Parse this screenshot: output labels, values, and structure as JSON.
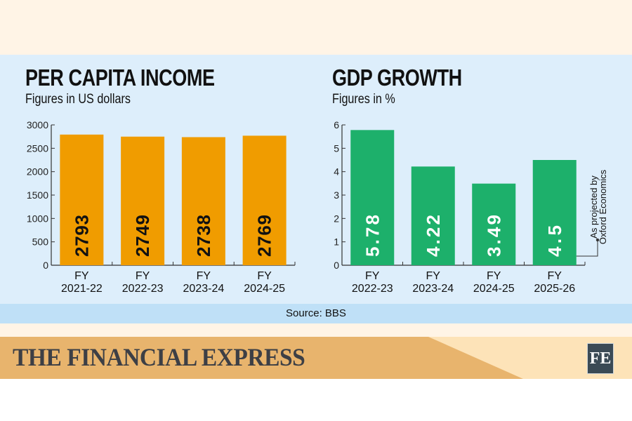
{
  "chart_data": [
    {
      "type": "bar",
      "title": "PER CAPITA INCOME",
      "subtitle": "Figures in US dollars",
      "categories": [
        [
          "FY",
          "2021-22"
        ],
        [
          "FY",
          "2022-23"
        ],
        [
          "FY",
          "2023-24"
        ],
        [
          "FY",
          "2024-25"
        ]
      ],
      "values": [
        2793,
        2749,
        2738,
        2769
      ],
      "ylim": [
        0,
        3000
      ],
      "yticks": [
        0,
        500,
        1000,
        1500,
        2000,
        2500,
        3000
      ],
      "color": "#f09c00",
      "label_color": "#111111",
      "grid": false
    },
    {
      "type": "bar",
      "title": "GDP GROWTH",
      "subtitle": "Figures in %",
      "categories": [
        [
          "FY",
          "2022-23"
        ],
        [
          "FY",
          "2023-24"
        ],
        [
          "FY",
          "2024-25"
        ],
        [
          "FY",
          "2025-26"
        ]
      ],
      "values": [
        5.78,
        4.22,
        3.49,
        4.5
      ],
      "ylim": [
        0,
        6
      ],
      "yticks": [
        0,
        1,
        2,
        3,
        4,
        5,
        6
      ],
      "color": "#1db06b",
      "label_color": "#ffffff",
      "grid": false,
      "annotation": {
        "target": "FY 2025-26",
        "lines": [
          "As projected by",
          "Oxford Economics"
        ]
      }
    }
  ],
  "source": "Source: BBS",
  "brand": {
    "name": "THE FINANCIAL EXPRESS",
    "logo": "FE"
  }
}
